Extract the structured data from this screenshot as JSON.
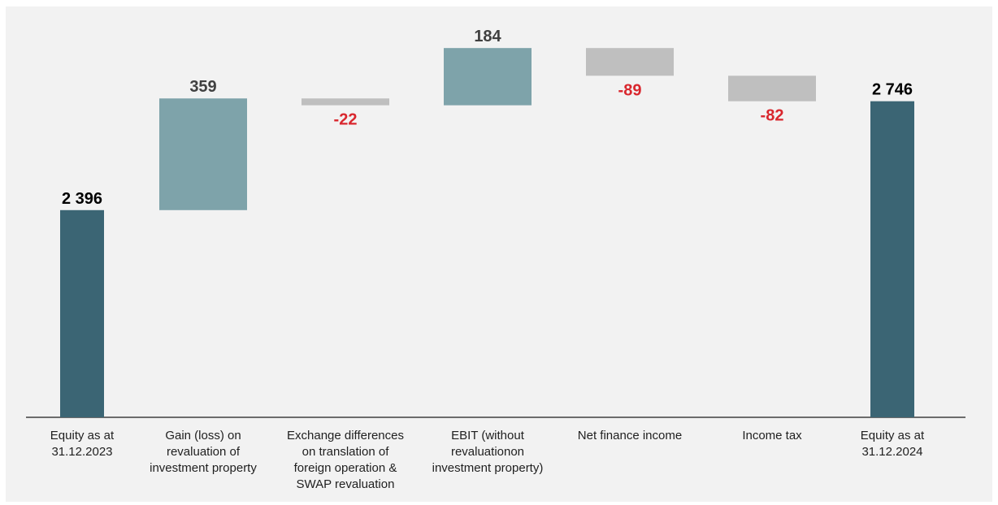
{
  "chart_data": {
    "type": "bar",
    "subtype": "waterfall",
    "title": "",
    "xlabel": "",
    "ylabel": "",
    "categories": [
      "Equity as at\n31.12.2023",
      "Gain (loss) on\nrevaluation of\ninvestment property",
      "Exchange differences\non translation of\nforeign operation &\nSWAP revaluation",
      "EBIT (without\nrevaluationon\ninvestment property)",
      "Net finance income",
      "Income tax",
      "Equity as at\n31.12.2024"
    ],
    "values": [
      2396,
      359,
      -22,
      184,
      -89,
      -82,
      2746
    ],
    "data_labels": [
      "2 396",
      "359",
      "-22",
      "184",
      "-89",
      "-82",
      "2 746"
    ],
    "kinds": [
      "total",
      "increase",
      "decrease",
      "increase",
      "decrease",
      "decrease",
      "total"
    ],
    "ylim": [
      1730,
      2800
    ],
    "grid": false,
    "legend": "none",
    "colors": {
      "total": "#3b6574",
      "increase": "#7ea3aa",
      "decrease": "#bfbfbf",
      "positive_label": "#404040",
      "negative_label": "#d9272e",
      "total_label": "#000000",
      "background": "#f2f2f2",
      "axis": "#404040"
    }
  }
}
